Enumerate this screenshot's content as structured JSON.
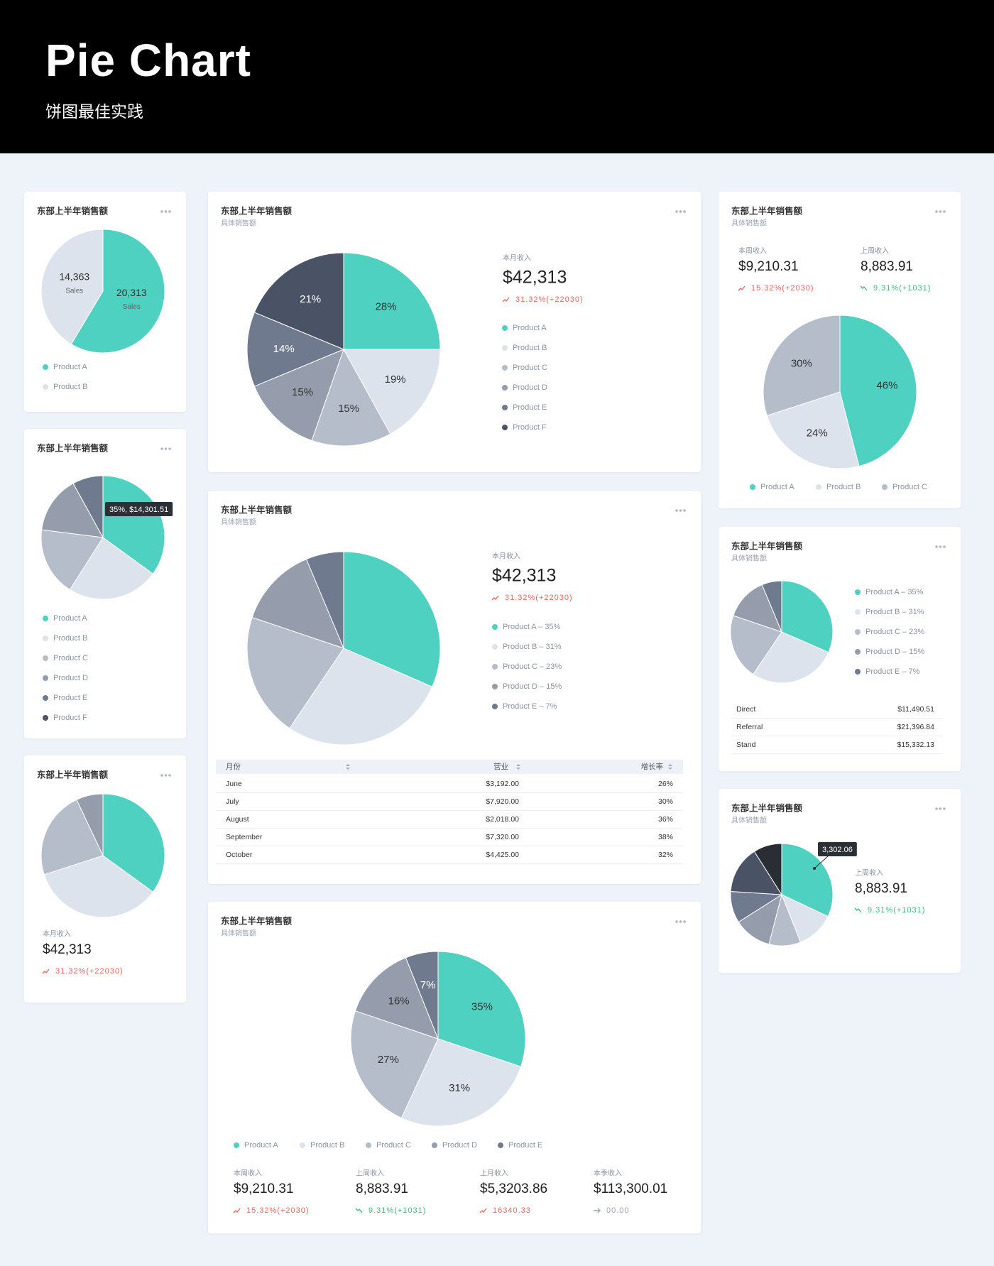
{
  "header": {
    "title": "Pie Chart",
    "subtitle": "饼图最佳实践"
  },
  "chart_data": [
    {
      "type": "pie",
      "title": "东部上半年销售额",
      "categories": [
        "Product A",
        "Product B"
      ],
      "values": [
        20313,
        14363
      ],
      "value_labels": [
        "20,313",
        "14,363"
      ],
      "value_caption": "Sales",
      "colors": [
        "#4fd1c1",
        "#dde3ec"
      ]
    },
    {
      "type": "pie",
      "title": "东部上半年销售额",
      "categories": [
        "Product A",
        "Product B",
        "Product C",
        "Product D",
        "Product E",
        "Product F"
      ],
      "values": [
        35,
        24,
        18,
        15,
        8,
        0
      ],
      "colors": [
        "#4fd1c1",
        "#dde3ec",
        "#b5bdcb",
        "#959dac",
        "#6f7a8f",
        "#4a5266"
      ],
      "tooltip": "35%, $14,301.51"
    },
    {
      "type": "pie",
      "title": "东部上半年销售额",
      "categories": [
        null,
        null,
        null,
        null
      ],
      "values": [
        35,
        35,
        23,
        7
      ],
      "colors": [
        "#4fd1c1",
        "#dde3ec",
        "#b5bdcb",
        "#959dac"
      ],
      "stats": [
        {
          "label": "本月收入",
          "value": "$42,313",
          "change": "31.32%(+22030)",
          "trend": "up"
        }
      ]
    },
    {
      "type": "pie",
      "title": "东部上半年销售额",
      "subtitle": "具体销售额",
      "categories": [
        "Product A",
        "Product B",
        "Product C",
        "Product D",
        "Product E",
        "Product F"
      ],
      "values": [
        28,
        19,
        15,
        15,
        14,
        21
      ],
      "value_labels": [
        "28%",
        "19%",
        "15%",
        "15%",
        "14%",
        "21%"
      ],
      "colors": [
        "#4fd1c1",
        "#dde3ec",
        "#b5bdcb",
        "#959dac",
        "#6f7a8f",
        "#4a5266"
      ],
      "stats": [
        {
          "label": "本月收入",
          "value": "$42,313",
          "change": "31.32%(+22030)",
          "trend": "up"
        }
      ]
    },
    {
      "type": "pie",
      "title": "东部上半年销售额",
      "subtitle": "具体销售额",
      "categories": [
        "Product A – 35%",
        "Product B – 31%",
        "Product C – 23%",
        "Product D – 15%",
        "Product E – 7%"
      ],
      "values": [
        35,
        31,
        23,
        15,
        7
      ],
      "colors": [
        "#4fd1c1",
        "#dde3ec",
        "#b5bdcb",
        "#959dac",
        "#6f7a8f"
      ],
      "stats": [
        {
          "label": "本月收入",
          "value": "$42,313",
          "change": "31.32%(+22030)",
          "trend": "up"
        }
      ],
      "table": {
        "columns": [
          "月份",
          "营业",
          "增长率"
        ],
        "rows": [
          [
            "June",
            "$3,192.00",
            "26%"
          ],
          [
            "July",
            "$7,920.00",
            "30%"
          ],
          [
            "August",
            "$2,018.00",
            "36%"
          ],
          [
            "September",
            "$7,320.00",
            "38%"
          ],
          [
            "October",
            "$4,425.00",
            "32%"
          ]
        ]
      }
    },
    {
      "type": "pie",
      "title": "东部上半年销售额",
      "subtitle": "具体销售额",
      "categories": [
        "Product A",
        "Product B",
        "Product C",
        "Product D",
        "Product E"
      ],
      "values": [
        35,
        31,
        27,
        16,
        7
      ],
      "value_labels": [
        "35%",
        "31%",
        "27%",
        "16%",
        "7%"
      ],
      "colors": [
        "#4fd1c1",
        "#dde3ec",
        "#b5bdcb",
        "#959dac",
        "#6f7a8f"
      ],
      "stats": [
        {
          "label": "本周收入",
          "value": "$9,210.31",
          "change": "15.32%(+2030)",
          "trend": "up"
        },
        {
          "label": "上周收入",
          "value": "8,883.91",
          "change": "9.31%(+1031)",
          "trend": "down"
        },
        {
          "label": "上月收入",
          "value": "$5,3203.86",
          "change": "16340.33",
          "trend": "up"
        },
        {
          "label": "本季收入",
          "value": "$113,300.01",
          "change": "00.00",
          "trend": "flat"
        }
      ]
    },
    {
      "type": "pie",
      "title": "东部上半年销售额",
      "subtitle": "具体销售额",
      "categories": [
        "Product A",
        "Product B",
        "Product C"
      ],
      "values": [
        46,
        24,
        30
      ],
      "value_labels": [
        "46%",
        "24%",
        "30%"
      ],
      "colors": [
        "#4fd1c1",
        "#dde3ec",
        "#b5bdcb"
      ],
      "stats": [
        {
          "label": "本周收入",
          "value": "$9,210.31",
          "change": "15.32%(+2030)",
          "trend": "up"
        },
        {
          "label": "上周收入",
          "value": "8,883.91",
          "change": "9.31%(+1031)",
          "trend": "down"
        }
      ]
    },
    {
      "type": "pie",
      "title": "东部上半年销售额",
      "subtitle": "具体销售额",
      "categories": [
        "Product A – 35%",
        "Product B – 31%",
        "Product C – 23%",
        "Product D – 15%",
        "Product E – 7%"
      ],
      "values": [
        35,
        31,
        23,
        15,
        7
      ],
      "colors": [
        "#4fd1c1",
        "#dde3ec",
        "#b5bdcb",
        "#959dac",
        "#6f7a8f"
      ],
      "table": {
        "rows": [
          [
            "Direct",
            "$11,490.51"
          ],
          [
            "Referral",
            "$21,396.84"
          ],
          [
            "Stand",
            "$15,332.13"
          ]
        ]
      }
    },
    {
      "type": "pie",
      "title": "东部上半年销售额",
      "subtitle": "具体销售额",
      "categories": [
        null,
        null,
        null,
        null,
        null,
        null,
        null
      ],
      "values": [
        32,
        12,
        10,
        12,
        10,
        15,
        9
      ],
      "colors": [
        "#4fd1c1",
        "#dde3ec",
        "#b5bdcb",
        "#959dac",
        "#6f7a8f",
        "#4a5266",
        "#2a2d33"
      ],
      "tooltip": "3,302.06",
      "stats": [
        {
          "label": "上周收入",
          "value": "8,883.91",
          "change": "9.31%(+1031)",
          "trend": "down"
        }
      ]
    }
  ]
}
